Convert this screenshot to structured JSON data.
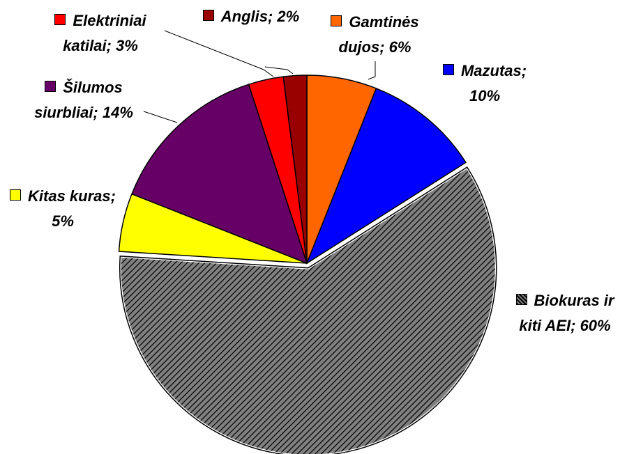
{
  "chart_data": {
    "type": "pie",
    "categories": [
      "Gamtinės dujos; 6%",
      "Mazutas; 10%",
      "Biokuras ir kiti AEI; 60%",
      "Kitas kuras; 5%",
      "Šilumos siurbliai; 14%",
      "Elektriniai katilai; 3%",
      "Anglis; 2%"
    ],
    "values": [
      6,
      10,
      60,
      5,
      14,
      3,
      2
    ],
    "colors": [
      "#ff6600",
      "#0000ff",
      "#808080",
      "#ffff00",
      "#660066",
      "#ff0000",
      "#990000"
    ],
    "hatched": [
      false,
      false,
      true,
      false,
      false,
      false,
      false
    ],
    "exploded": [
      false,
      false,
      true,
      false,
      false,
      false,
      false
    ]
  }
}
